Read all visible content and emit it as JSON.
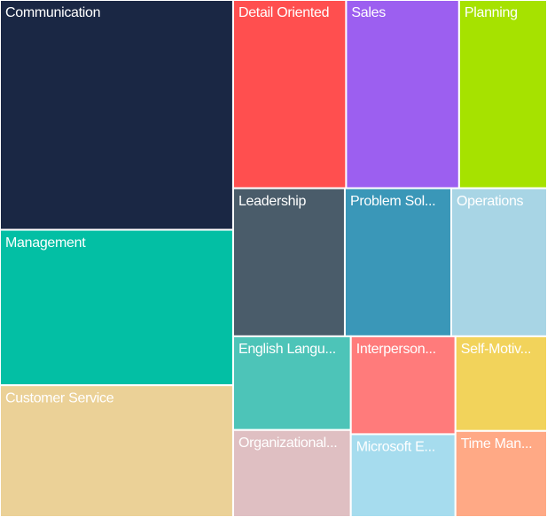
{
  "chart_data": {
    "type": "treemap",
    "categories": [
      "Communication",
      "Management",
      "Customer Service",
      "Detail Oriented",
      "Sales",
      "Planning",
      "Leadership",
      "Problem Sol...",
      "Operations",
      "English Langu...",
      "Organizational...",
      "Interperson...",
      "Microsoft E...",
      "Self-Motiv...",
      "Time Man..."
    ],
    "values": [
      68,
      46,
      39,
      27,
      27,
      21,
      21,
      20,
      18,
      14,
      13,
      13,
      11,
      11,
      10
    ],
    "colors": [
      "#1a2744",
      "#03bfa4",
      "#ebd197",
      "#ff4f4f",
      "#9c5ff0",
      "#a6e200",
      "#4a5c6a",
      "#3a97b8",
      "#a8d5e5",
      "#4dc4b8",
      "#dfbfc2",
      "#ff7b7b",
      "#a6dcee",
      "#f2d35b",
      "#ffa985"
    ]
  }
}
